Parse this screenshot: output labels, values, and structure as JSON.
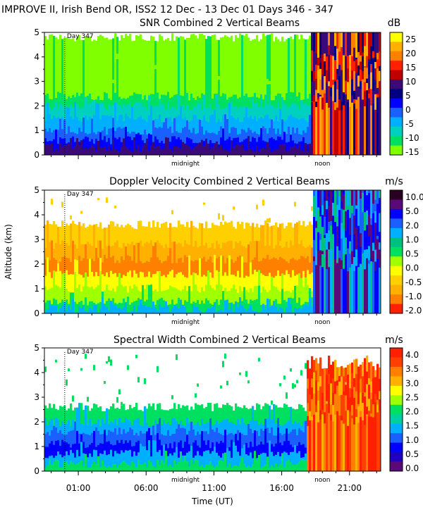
{
  "header": {
    "main_title": "IMPROVE II,  Irish Bend OR, ISS2  12 Dec - 13 Dec 01 Days 346 - 347"
  },
  "chart_data": [
    {
      "type": "heatmap",
      "title": "SNR Combined 2 Vertical Beams",
      "units": "dB",
      "ylim": [
        0,
        5
      ],
      "yticks": [
        "0",
        "1",
        "2",
        "3",
        "4",
        "5"
      ],
      "day_label": "Day 347",
      "annotations": [
        "midnight",
        "noon"
      ],
      "colorbar": {
        "labels": [
          "25",
          "20",
          "15",
          "10",
          "5",
          "0",
          "-5",
          "-10",
          "-15"
        ],
        "colors": [
          "#ffff00",
          "#ffb000",
          "#ff8000",
          "#ff2000",
          "#c00000",
          "#3a0a78",
          "#000080",
          "#0000ff",
          "#1a60ff",
          "#00b0ff",
          "#00d0c0",
          "#00e060",
          "#80ff00"
        ]
      },
      "layers": [
        {
          "top": 4.8,
          "color": "#80ff00"
        },
        {
          "top": 2.4,
          "color": "#00e060"
        },
        {
          "top": 2.0,
          "color": "#00d0c0"
        },
        {
          "top": 1.5,
          "color": "#00b0ff"
        },
        {
          "top": 1.0,
          "color": "#1a60ff"
        },
        {
          "top": 0.6,
          "color": "#0000ff"
        },
        {
          "top": 0.3,
          "color": "#3a0a78"
        }
      ],
      "x_range": [
        -1.5,
        23.3
      ],
      "late_start": 18.0,
      "late_colors": [
        "#ffb000",
        "#ff8000",
        "#ff2000",
        "#c00000",
        "#3a0a78",
        "#000080"
      ]
    },
    {
      "type": "heatmap",
      "title": "Doppler Velocity Combined 2 Vertical Beams",
      "units": "m/s",
      "ylabel": "Altitude (km)",
      "ylim": [
        0,
        5
      ],
      "yticks": [
        "0",
        "1",
        "2",
        "3",
        "4",
        "5"
      ],
      "day_label": "Day 347",
      "annotations": [
        "midnight",
        "noon"
      ],
      "colorbar": {
        "labels": [
          "10.0",
          "5.0",
          "2.0",
          "1.0",
          "0.5",
          "0.0",
          "-0.5",
          "-1.0",
          "-2.0"
        ],
        "colors": [
          "#2a0020",
          "#5a0a78",
          "#0000ff",
          "#1a60ff",
          "#00b0ff",
          "#00c080",
          "#00e060",
          "#a0ff00",
          "#ffff00",
          "#ffd000",
          "#ffb000",
          "#ff8000",
          "#ff2000"
        ]
      },
      "layers": [
        {
          "top": 3.6,
          "color": "#ffd000"
        },
        {
          "top": 2.8,
          "color": "#ffb000"
        },
        {
          "top": 2.2,
          "color": "#ff8000"
        },
        {
          "top": 1.6,
          "color": "#ffff00"
        },
        {
          "top": 1.0,
          "color": "#a0ff00"
        },
        {
          "top": 0.5,
          "color": "#00e060"
        },
        {
          "top": 0.2,
          "color": "#00b0ff"
        }
      ],
      "x_range": [
        -1.5,
        23.3
      ],
      "late_start": 18.3,
      "late_colors": [
        "#00b0ff",
        "#1a60ff",
        "#00c080",
        "#0000ff",
        "#5a0a78"
      ]
    },
    {
      "type": "heatmap",
      "title": "Spectral Width Combined 2 Vertical Beams",
      "units": "m/s",
      "ylim": [
        0,
        5
      ],
      "yticks": [
        "0",
        "1",
        "2",
        "3",
        "4",
        "5"
      ],
      "day_label": "Day 347",
      "annotations": [
        "midnight",
        "noon"
      ],
      "xlabel": "Time (UT)",
      "xticks": [
        "01:00",
        "06:00",
        "11:00",
        "16:00",
        "21:00"
      ],
      "colorbar": {
        "labels": [
          "4.0",
          "3.5",
          "3.0",
          "2.5",
          "2.0",
          "1.5",
          "1.0",
          "0.5",
          "0.0"
        ],
        "colors": [
          "#ff2000",
          "#ff4000",
          "#ff8000",
          "#ffb000",
          "#ffff00",
          "#a0ff00",
          "#00e060",
          "#00d0a0",
          "#00b0ff",
          "#1a60ff",
          "#0000ff",
          "#2000c0",
          "#5a0a78"
        ]
      },
      "layers": [
        {
          "top": 2.6,
          "color": "#00e060"
        },
        {
          "top": 2.0,
          "color": "#00b0ff"
        },
        {
          "top": 1.6,
          "color": "#1a60ff"
        },
        {
          "top": 1.1,
          "color": "#0000ff"
        },
        {
          "top": 0.7,
          "color": "#00b0ff"
        },
        {
          "top": 0.3,
          "color": "#00e060"
        }
      ],
      "x_range": [
        -1.5,
        23.3
      ],
      "late_start": 17.8,
      "late_colors": [
        "#ff2000",
        "#ff4000",
        "#ff8000",
        "#ff2000",
        "#ffb000"
      ]
    }
  ]
}
